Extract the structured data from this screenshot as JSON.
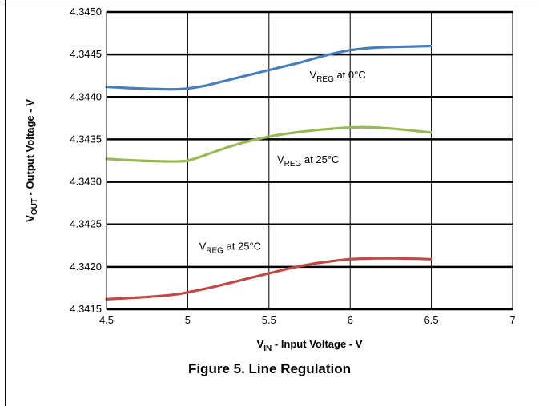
{
  "caption": "Figure 5. Line Regulation",
  "chart_data": {
    "type": "line",
    "xlabel": {
      "main": "V",
      "sub": "IN",
      "rest": " - Input Voltage - V"
    },
    "ylabel": {
      "main": "V",
      "sub": "OUT",
      "rest": " - Output Voltage - V"
    },
    "xlim": [
      4.5,
      7
    ],
    "ylim": [
      4.3415,
      4.345
    ],
    "xticks": [
      "4.5",
      "5",
      "5.5",
      "6",
      "6.5",
      "7"
    ],
    "yticks": [
      "4.3415",
      "4.3420",
      "4.3425",
      "4.3430",
      "4.3435",
      "4.3440",
      "4.3445",
      "4.3450"
    ],
    "grid": true,
    "series": [
      {
        "color": "#4a7ebb",
        "x": [
          4.5,
          4.7,
          4.9,
          5.0,
          5.1,
          5.25,
          5.4,
          5.55,
          5.7,
          5.85,
          6.0,
          6.15,
          6.3,
          6.5
        ],
        "y": [
          4.34412,
          4.3441,
          4.34409,
          4.3441,
          4.34413,
          4.3442,
          4.34427,
          4.34434,
          4.34441,
          4.34449,
          4.34455,
          4.34458,
          4.34459,
          4.3446
        ]
      },
      {
        "color": "#98b954",
        "x": [
          4.5,
          4.7,
          4.9,
          5.0,
          5.1,
          5.25,
          5.4,
          5.55,
          5.7,
          5.85,
          6.0,
          6.15,
          6.3,
          6.5
        ],
        "y": [
          4.34327,
          4.34325,
          4.34324,
          4.34325,
          4.34331,
          4.34341,
          4.34349,
          4.34355,
          4.34359,
          4.34362,
          4.34364,
          4.34364,
          4.34362,
          4.34358
        ]
      },
      {
        "color": "#be4b48",
        "x": [
          4.5,
          4.7,
          4.9,
          5.0,
          5.15,
          5.3,
          5.45,
          5.6,
          5.75,
          5.9,
          6.0,
          6.15,
          6.3,
          6.5
        ],
        "y": [
          4.34162,
          4.34164,
          4.34167,
          4.3417,
          4.34176,
          4.34183,
          4.3419,
          4.34197,
          4.34203,
          4.34207,
          4.34209,
          4.3421,
          4.3421,
          4.34209
        ]
      }
    ],
    "annotations": [
      {
        "main": "V",
        "sub": "REG",
        "rest": " at 0°C",
        "x": 5.75,
        "y": 4.34422
      },
      {
        "main": "V",
        "sub": "REG",
        "rest": " at 25°C",
        "x": 5.55,
        "y": 4.34322
      },
      {
        "main": "V",
        "sub": "REG",
        "rest": " at 25°C",
        "x": 5.07,
        "y": 4.3422
      }
    ]
  }
}
